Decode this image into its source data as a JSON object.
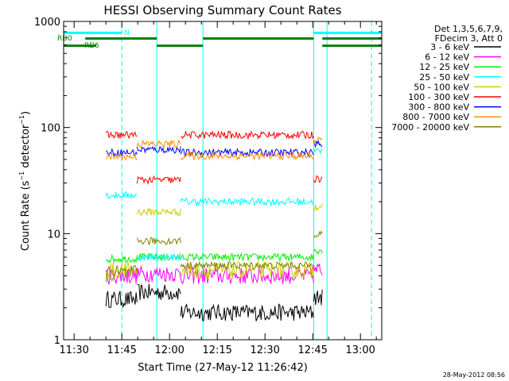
{
  "chart_data": {
    "type": "line",
    "title": "HESSI Observing Summary Count Rates",
    "xlabel": "Start Time (27-May-12 11:26:42)",
    "ylabel": "Count Rate (s⁻¹ detector⁻¹)",
    "ylabel_main": "Count Rate (s",
    "ylabel_exp1": "−1",
    "ylabel_mid": " detector",
    "ylabel_exp2": "−1",
    "ylabel_end": ")",
    "xlim_minutes": [
      686.7,
      786.7
    ],
    "ylim": [
      1,
      1000
    ],
    "y_scale": "log",
    "x_ticks": [
      {
        "t": 690,
        "label": "11:30"
      },
      {
        "t": 705,
        "label": "11:45"
      },
      {
        "t": 720,
        "label": "12:00"
      },
      {
        "t": 735,
        "label": "12:15"
      },
      {
        "t": 750,
        "label": "12:30"
      },
      {
        "t": 765,
        "label": "12:45"
      },
      {
        "t": 780,
        "label": "13:00"
      }
    ],
    "y_ticks": [
      {
        "v": 1,
        "label": "1"
      },
      {
        "v": 10,
        "label": "10"
      },
      {
        "v": 100,
        "label": "100"
      },
      {
        "v": 1000,
        "label": "1000"
      }
    ],
    "legend_header": [
      "Det 1,3,5,6,7,9,",
      "FDecim 3, Att 0"
    ],
    "series": [
      {
        "name": "3 - 6 keV",
        "color": "#000000"
      },
      {
        "name": "6 - 12 keV",
        "color": "#ff00ff"
      },
      {
        "name": "12 - 25 keV",
        "color": "#00ee00"
      },
      {
        "name": "25 - 50 keV",
        "color": "#00ffff"
      },
      {
        "name": "50 - 100 keV",
        "color": "#cccc00"
      },
      {
        "name": "100 - 300 keV",
        "color": "#ff0000"
      },
      {
        "name": "300 - 800 keV",
        "color": "#0000ff"
      },
      {
        "name": "800 - 7000 keV",
        "color": "#ff8c00"
      },
      {
        "name": "7000 - 20000 keV",
        "color": "#808000"
      }
    ],
    "segments": [
      {
        "t0": 700.0,
        "t1": 709.8,
        "values": {
          "3 - 6 keV": 2.4,
          "6 - 12 keV": 4.0,
          "12 - 25 keV": 5.8,
          "25 - 50 keV": 23,
          "50 - 100 keV": 4.5,
          "100 - 300 keV": 85,
          "300 - 800 keV": 58,
          "800 - 7000 keV": 53,
          "7000 - 20000 keV": 4.2
        }
      },
      {
        "t0": 709.8,
        "t1": 723.5,
        "values": {
          "3 - 6 keV": 2.8,
          "6 - 12 keV": 4.2,
          "12 - 25 keV": 6.0,
          "25 - 50 keV": 6.0,
          "50 - 100 keV": 16,
          "100 - 300 keV": 32,
          "300 - 800 keV": 62,
          "800 - 7000 keV": 70,
          "7000 - 20000 keV": 8.5
        }
      },
      {
        "t0": 723.5,
        "t1": 765.3,
        "values": {
          "3 - 6 keV": 1.8,
          "6 - 12 keV": 4.0,
          "12 - 25 keV": 6.0,
          "25 - 50 keV": 20,
          "50 - 100 keV": 4.5,
          "100 - 300 keV": 85,
          "300 - 800 keV": 58,
          "800 - 7000 keV": 54,
          "7000 - 20000 keV": 5.0
        }
      },
      {
        "t0": 765.3,
        "t1": 768.0,
        "values": {
          "3 - 6 keV": 2.5,
          "6 - 12 keV": 4.5,
          "12 - 25 keV": 7.0,
          "25 - 50 keV": 60,
          "50 - 100 keV": 18,
          "100 - 300 keV": 33,
          "300 - 800 keV": 70,
          "800 - 7000 keV": 75,
          "7000 - 20000 keV": 10
        }
      }
    ],
    "state_bars": [
      {
        "name": "N",
        "label": "N",
        "color": "#00ffff",
        "y_value": 780,
        "intervals": [
          [
            686.7,
            705.0
          ],
          [
            765.3,
            786.7
          ]
        ]
      },
      {
        "name": "RD0",
        "label": "RD0",
        "color": "#008000",
        "y_value": 690,
        "intervals": [
          [
            693.5,
            716.0
          ],
          [
            730.5,
            765.3
          ],
          [
            768.0,
            786.7
          ]
        ]
      },
      {
        "name": "RD6",
        "label": "RD6",
        "color": "#008000",
        "y_value": 590,
        "intervals": [
          [
            686.7,
            697.0
          ],
          [
            716.0,
            730.5
          ],
          [
            768.0,
            786.7
          ]
        ]
      }
    ],
    "vlines": [
      {
        "t": 705.0,
        "style": "dashed",
        "color": "#00ffff"
      },
      {
        "t": 716.0,
        "style": "solid",
        "color": "#00ffff"
      },
      {
        "t": 730.5,
        "style": "solid",
        "color": "#00ffff"
      },
      {
        "t": 765.3,
        "style": "solid",
        "color": "#00ffff"
      },
      {
        "t": 769.5,
        "style": "solid",
        "color": "#00ffff"
      },
      {
        "t": 783.5,
        "style": "dashed",
        "color": "#00ffff"
      }
    ]
  },
  "footer": {
    "timestamp": "28-May-2012 08:56"
  }
}
